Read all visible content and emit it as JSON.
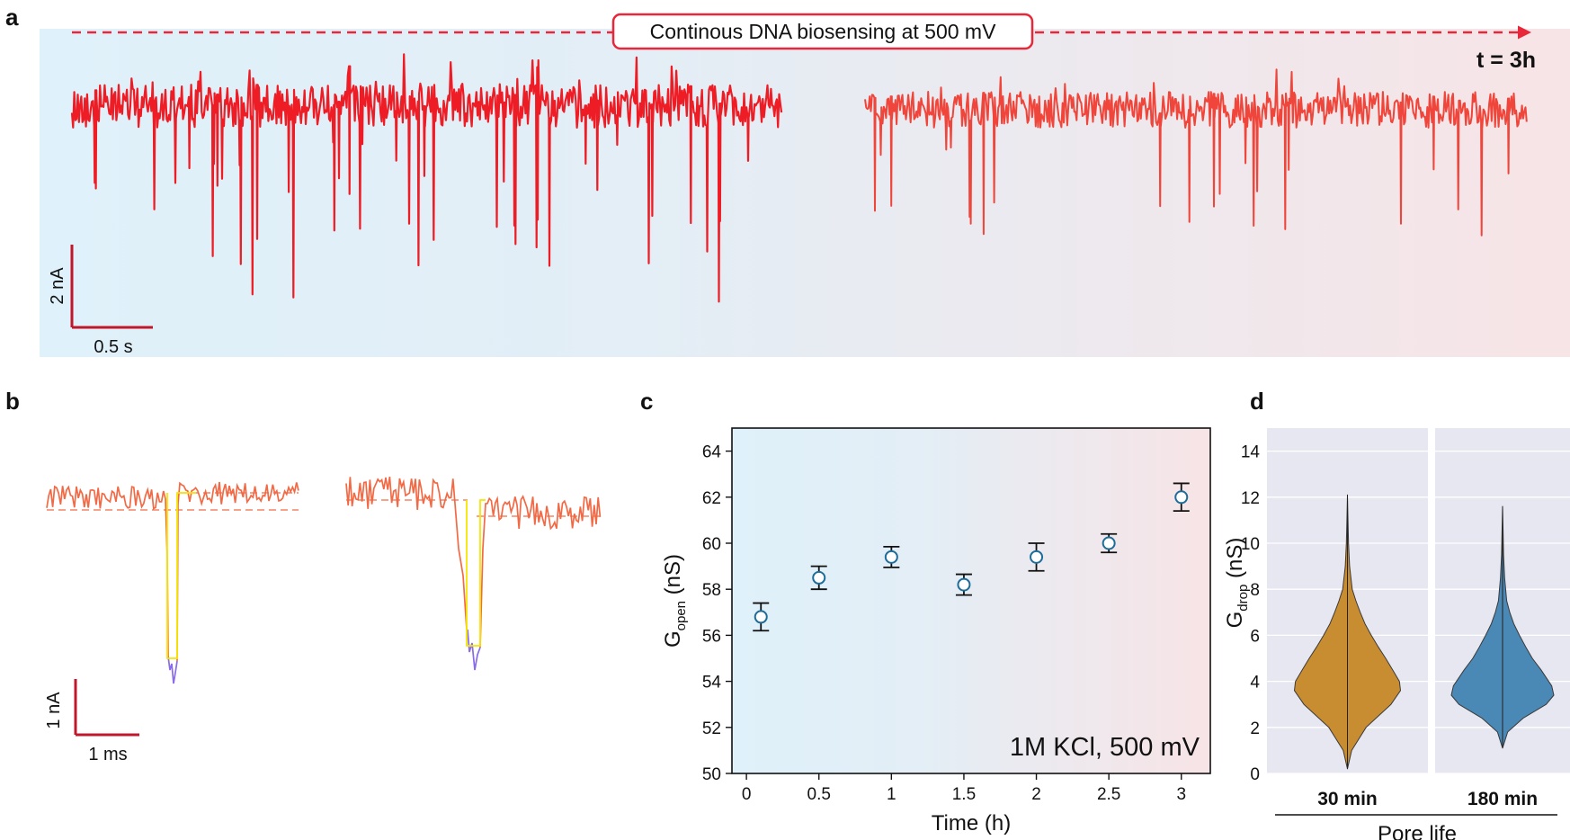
{
  "panel_letters": {
    "a": "a",
    "b": "b",
    "c": "c",
    "d": "d"
  },
  "panel_a": {
    "banner": "Continous DNA biosensing at 500 mV",
    "time_label": "t = 3h",
    "scale_y": "2 nA",
    "scale_x": "0.5 s",
    "colors": {
      "bg_start": "#dff1fa",
      "bg_end": "#f7e4e6",
      "trace_early": "#ee1c25",
      "trace_late": "#f0453a",
      "arrow": "#e8283a"
    }
  },
  "panel_b": {
    "scale_y": "1 nA",
    "scale_x": "1 ms",
    "colors": {
      "trace": "#f26a45",
      "fit": "#f5e600",
      "event": "#8a6be8",
      "scalebar": "#c0172b"
    }
  },
  "chart_data": [
    {
      "type": "scatter",
      "panel": "c",
      "title": "",
      "xlabel": "Time (h)",
      "ylabel_main": "G",
      "ylabel_sub": "open",
      "ylabel_unit": " (nS)",
      "annotation": "1M KCl, 500 mV",
      "xlim": [
        -0.1,
        3.2
      ],
      "ylim": [
        50,
        65
      ],
      "x_ticks": [
        0,
        0.5,
        1,
        1.5,
        2,
        2.5,
        3
      ],
      "x_tick_labels": [
        "0",
        "0.5",
        "1",
        "1.5",
        "2",
        "2.5",
        "3"
      ],
      "y_ticks": [
        50,
        52,
        54,
        56,
        58,
        60,
        62,
        64
      ],
      "y_tick_labels": [
        "50",
        "52",
        "54",
        "56",
        "58",
        "60",
        "62",
        "64"
      ],
      "points": [
        {
          "x": 0.1,
          "y": 56.8,
          "err": 0.6
        },
        {
          "x": 0.5,
          "y": 58.5,
          "err": 0.5
        },
        {
          "x": 1.0,
          "y": 59.4,
          "err": 0.45
        },
        {
          "x": 1.5,
          "y": 58.2,
          "err": 0.45
        },
        {
          "x": 2.0,
          "y": 59.4,
          "err": 0.6
        },
        {
          "x": 2.5,
          "y": 60.0,
          "err": 0.4
        },
        {
          "x": 3.0,
          "y": 62.0,
          "err": 0.6
        }
      ],
      "colors": {
        "marker_edge": "#1d6c99",
        "marker_fill": "#ffffff",
        "errorbar": "#111111"
      }
    },
    {
      "type": "violin",
      "panel": "d",
      "ylabel_main": "G",
      "ylabel_sub": "drop",
      "ylabel_unit": " (nS)",
      "xlabel": "Pore life",
      "ylim": [
        0,
        15
      ],
      "y_ticks": [
        0,
        2,
        4,
        6,
        8,
        10,
        12,
        14
      ],
      "y_tick_labels": [
        "0",
        "2",
        "4",
        "6",
        "8",
        "10",
        "12",
        "14"
      ],
      "categories": [
        "30 min",
        "180 min"
      ],
      "series": [
        {
          "name": "30 min",
          "color": "#c98d31",
          "min": 0.2,
          "max": 12.1,
          "mode": 4.0,
          "median": 4.2,
          "profile": [
            [
              0.2,
              0.0
            ],
            [
              1.0,
              0.08
            ],
            [
              2.0,
              0.35
            ],
            [
              3.0,
              0.82
            ],
            [
              3.6,
              1.0
            ],
            [
              4.0,
              0.98
            ],
            [
              4.5,
              0.85
            ],
            [
              5.0,
              0.72
            ],
            [
              5.5,
              0.58
            ],
            [
              6.0,
              0.45
            ],
            [
              6.5,
              0.33
            ],
            [
              7.0,
              0.24
            ],
            [
              7.5,
              0.16
            ],
            [
              8.0,
              0.09
            ],
            [
              9.0,
              0.04
            ],
            [
              10.0,
              0.02
            ],
            [
              11.0,
              0.01
            ],
            [
              12.1,
              0.0
            ]
          ]
        },
        {
          "name": "180 min",
          "color": "#4a88b5",
          "min": 1.1,
          "max": 11.6,
          "mode": 3.5,
          "median": 3.9,
          "profile": [
            [
              1.1,
              0.0
            ],
            [
              1.8,
              0.1
            ],
            [
              2.4,
              0.4
            ],
            [
              3.0,
              0.85
            ],
            [
              3.4,
              1.0
            ],
            [
              3.8,
              0.96
            ],
            [
              4.5,
              0.75
            ],
            [
              5.0,
              0.58
            ],
            [
              5.5,
              0.45
            ],
            [
              6.0,
              0.33
            ],
            [
              6.5,
              0.22
            ],
            [
              7.0,
              0.14
            ],
            [
              7.5,
              0.08
            ],
            [
              8.5,
              0.04
            ],
            [
              9.5,
              0.02
            ],
            [
              10.5,
              0.01
            ],
            [
              11.6,
              0.0
            ]
          ]
        }
      ],
      "colors": {
        "bg": "#e7e7f1",
        "grid": "#ffffff"
      }
    }
  ]
}
